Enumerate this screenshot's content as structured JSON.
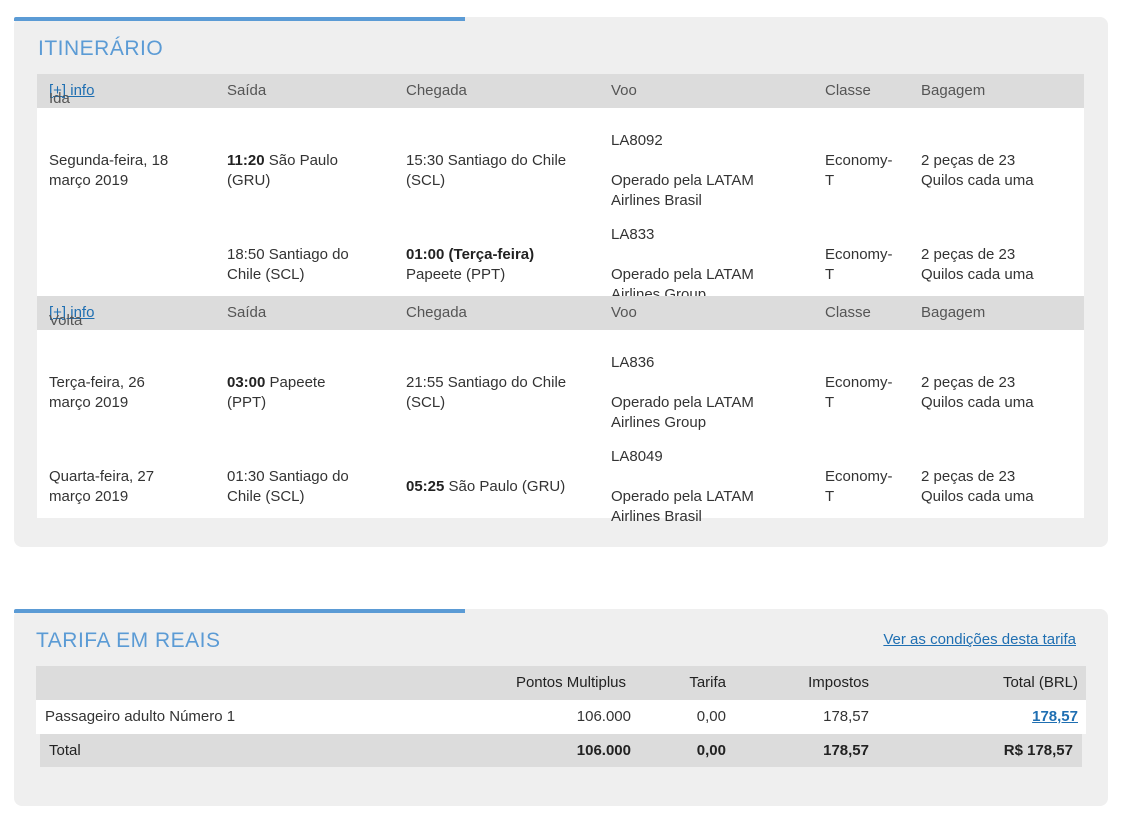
{
  "itinerary": {
    "title": "ITINERÁRIO",
    "info_link": "[+] info",
    "outbound": {
      "label": "Ida",
      "headers": [
        "Saída",
        "Chegada",
        "Voo",
        "Classe",
        "Bagagem"
      ],
      "rows": [
        {
          "date": [
            "Segunda-feira, 18",
            "março 2019"
          ],
          "dep_time": "11:20",
          "dep_place": [
            "São Paulo",
            "(GRU)"
          ],
          "arr_time": "",
          "arr_place": [
            "15:30 Santiago do Chile",
            "(SCL)"
          ],
          "flight": "LA8092",
          "operator": [
            "Operado pela LATAM",
            "Airlines Brasil"
          ],
          "class": [
            "Economy-",
            "T"
          ],
          "baggage": [
            "2 peças de 23",
            "Quilos cada uma"
          ]
        },
        {
          "date": [
            "",
            ""
          ],
          "dep_place_plain": [
            "18:50 Santiago do",
            "Chile (SCL)"
          ],
          "arr_time": "01:00 (Terça-feira)",
          "arr_place": [
            "Papeete (PPT)"
          ],
          "flight": "LA833",
          "operator": [
            "Operado pela LATAM",
            "Airlines Group"
          ],
          "class": [
            "Economy-",
            "T"
          ],
          "baggage": [
            "2 peças de 23",
            "Quilos cada uma"
          ]
        }
      ]
    },
    "return": {
      "label": "Volta",
      "headers": [
        "Saída",
        "Chegada",
        "Voo",
        "Classe",
        "Bagagem"
      ],
      "rows": [
        {
          "date": [
            "Terça-feira, 26",
            "março 2019"
          ],
          "dep_time": "03:00",
          "dep_place": [
            "Papeete",
            "(PPT)"
          ],
          "arr_place": [
            "21:55 Santiago do Chile",
            "(SCL)"
          ],
          "flight": "LA836",
          "operator": [
            "Operado pela LATAM",
            "Airlines Group"
          ],
          "class": [
            "Economy-",
            "T"
          ],
          "baggage": [
            "2 peças de 23",
            "Quilos cada uma"
          ]
        },
        {
          "date": [
            "Quarta-feira, 27",
            "março 2019"
          ],
          "dep_place_plain": [
            "01:30 Santiago do",
            "Chile (SCL)"
          ],
          "arr_time": "05:25",
          "arr_place": [
            "São Paulo (GRU)"
          ],
          "flight": "LA8049",
          "operator": [
            "Operado pela LATAM",
            "Airlines Brasil"
          ],
          "class": [
            "Economy-",
            "T"
          ],
          "baggage": [
            "2 peças de 23",
            "Quilos cada uma"
          ]
        }
      ]
    }
  },
  "fare": {
    "title": "TARIFA EM REAIS",
    "conditions_link": "Ver as condições desta tarifa",
    "headers": [
      "Pontos Multiplus",
      "Tarifa",
      "Impostos",
      "Total (BRL)"
    ],
    "passenger": {
      "label": "Passageiro adulto Número 1",
      "points": "106.000",
      "fare": "0,00",
      "taxes": "178,57",
      "total": "178,57"
    },
    "total_row": {
      "label": "Total",
      "points": "106.000",
      "fare": "0,00",
      "taxes": "178,57",
      "total": "R$ 178,57"
    }
  }
}
